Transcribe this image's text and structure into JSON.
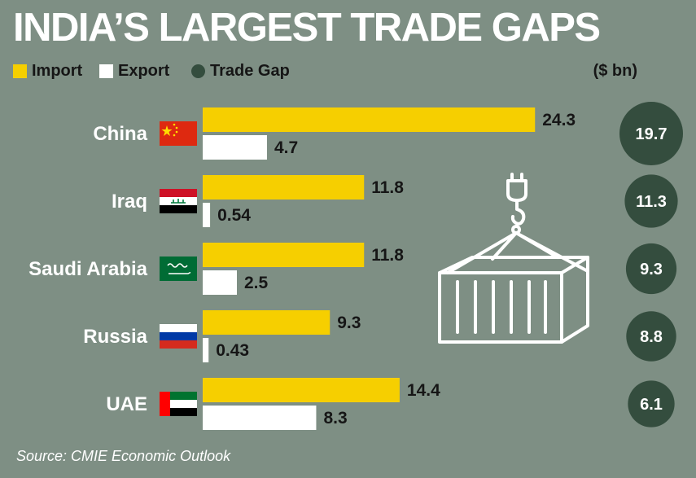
{
  "title": "INDIA’S LARGEST TRADE GAPS",
  "unit_label": "($ bn)",
  "source": "Source: CMIE Economic Outlook",
  "colors": {
    "background": "#7e8f84",
    "import": "#f6cf00",
    "export": "#ffffff",
    "trade_gap": "#344d3e"
  },
  "icons": {
    "china": "china-flag-icon",
    "iraq": "iraq-flag-icon",
    "saudi": "saudi-flag-icon",
    "russia": "russia-flag-icon",
    "uae": "uae-flag-icon",
    "container": "shipping-container-icon"
  },
  "chart_data": {
    "type": "bar",
    "orientation": "horizontal",
    "categories": [
      "China",
      "Iraq",
      "Saudi Arabia",
      "Russia",
      "UAE"
    ],
    "series": [
      {
        "name": "Import",
        "values": [
          24.3,
          11.8,
          11.8,
          9.3,
          14.4
        ]
      },
      {
        "name": "Export",
        "values": [
          4.7,
          0.54,
          2.5,
          0.43,
          8.3
        ]
      },
      {
        "name": "Trade Gap",
        "values": [
          19.7,
          11.3,
          9.3,
          8.8,
          6.1
        ]
      }
    ],
    "value_labels": {
      "Import": [
        "24.3",
        "11.8",
        "11.8",
        "9.3",
        "14.4"
      ],
      "Export": [
        "4.7",
        "0.54",
        "2.5",
        "0.43",
        "8.3"
      ],
      "Trade Gap": [
        "19.7",
        "11.3",
        "9.3",
        "8.8",
        "6.1"
      ]
    },
    "legend_position": "top-left",
    "axes_visible": false,
    "grid": false
  }
}
